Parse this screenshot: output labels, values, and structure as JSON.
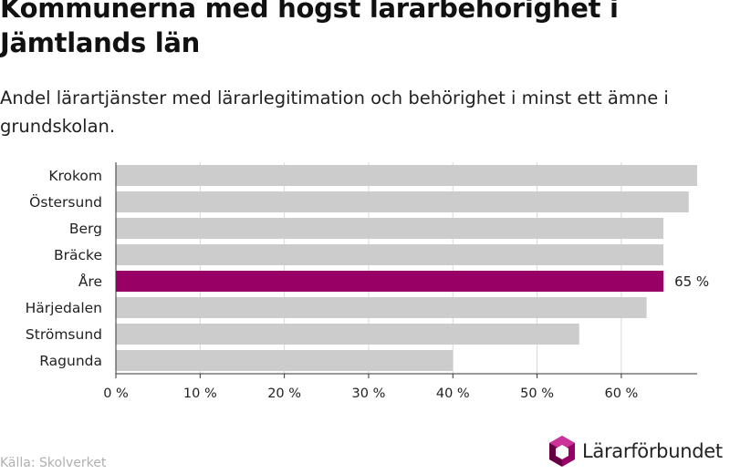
{
  "title": "Kommunerna med högst lärarbehörighet i Jämtlands län",
  "subtitle": "Andel lärartjänster med lärarlegitimation och behörighet i minst ett ämne i grundskolan.",
  "source": "Källa: Skolverket",
  "logo_text": "Lärarförbundet",
  "colors": {
    "default_bar": "#cccccc",
    "highlight_bar": "#990066",
    "grid": "#d9d9d9",
    "axis": "#333333"
  },
  "chart_data": {
    "type": "bar",
    "orientation": "horizontal",
    "categories": [
      "Krokom",
      "Östersund",
      "Berg",
      "Bräcke",
      "Åre",
      "Härjedalen",
      "Strömsund",
      "Ragunda"
    ],
    "values": [
      69,
      68,
      65,
      65,
      65,
      63,
      55,
      40
    ],
    "highlight": "Åre",
    "data_labels": {
      "Åre": "65 %"
    },
    "xlim": [
      0,
      69
    ],
    "xticks": [
      0,
      10,
      20,
      30,
      40,
      50,
      60
    ],
    "xtick_labels": [
      "0 %",
      "10 %",
      "20 %",
      "30 %",
      "40 %",
      "50 %",
      "60 %"
    ],
    "grid": true,
    "xlabel": "",
    "ylabel": ""
  }
}
